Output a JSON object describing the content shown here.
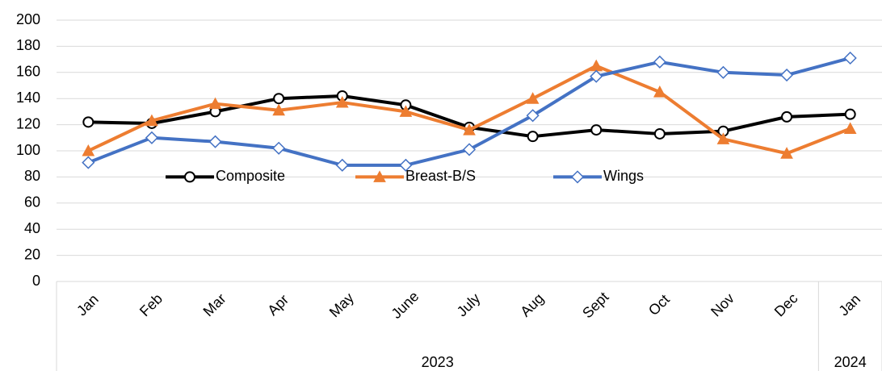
{
  "chart_data": {
    "type": "line",
    "categories": [
      "Jan",
      "Feb",
      "Mar",
      "Apr",
      "May",
      "June",
      "July",
      "Aug",
      "Sept",
      "Oct",
      "Nov",
      "Dec",
      "Jan"
    ],
    "x_groups": [
      {
        "label": "2023",
        "count": 12
      },
      {
        "label": "2024",
        "count": 1
      }
    ],
    "series": [
      {
        "name": "Composite",
        "color": "#000000",
        "marker": "circle",
        "values": [
          122,
          121,
          130,
          140,
          142,
          135,
          118,
          111,
          116,
          113,
          115,
          126,
          128
        ]
      },
      {
        "name": "Breast-B/S",
        "color": "#ed7d31",
        "marker": "triangle",
        "values": [
          100,
          123,
          136,
          131,
          137,
          130,
          116,
          140,
          165,
          145,
          109,
          98,
          117
        ]
      },
      {
        "name": "Wings",
        "color": "#4472c4",
        "marker": "diamond",
        "values": [
          91,
          110,
          107,
          102,
          89,
          89,
          101,
          127,
          157,
          168,
          160,
          158,
          171
        ]
      }
    ],
    "ylim": [
      0,
      200
    ],
    "yticks": [
      0,
      20,
      40,
      60,
      80,
      100,
      120,
      140,
      160,
      180,
      200
    ],
    "grid": true,
    "legend": "center"
  }
}
